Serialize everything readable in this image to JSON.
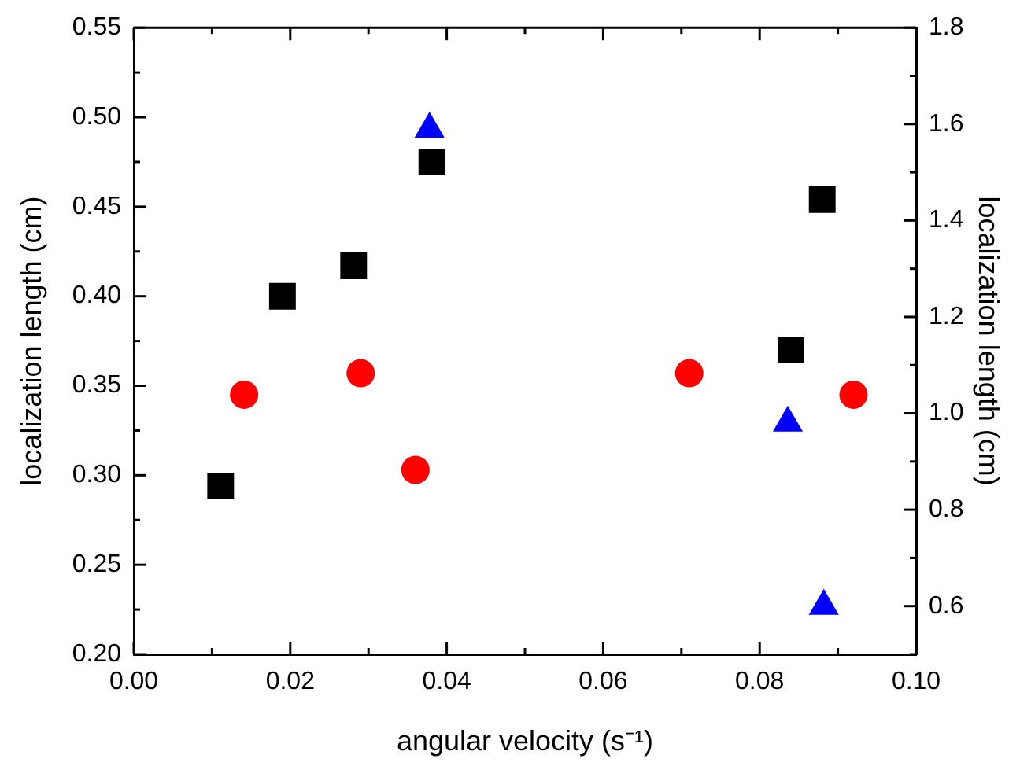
{
  "chart_data": {
    "type": "scatter",
    "xlabel": "angular velocity (s⁻¹)",
    "ylabel": "localization length (cm)",
    "y2label": "localization length (cm)",
    "xlim": [
      0,
      0.1
    ],
    "xticks": [
      {
        "value": 0,
        "label": "0.00"
      },
      {
        "value": 0.01,
        "label": null
      },
      {
        "value": 0.02,
        "label": "0.02"
      },
      {
        "value": 0.03,
        "label": null
      },
      {
        "value": 0.04,
        "label": "0.04"
      },
      {
        "value": 0.05,
        "label": null
      },
      {
        "value": 0.06,
        "label": "0.06"
      },
      {
        "value": 0.07,
        "label": null
      },
      {
        "value": 0.08,
        "label": "0.08"
      },
      {
        "value": 0.09,
        "label": null
      },
      {
        "value": 0.1,
        "label": "0.10"
      }
    ],
    "ylim": [
      0.2,
      0.55
    ],
    "yticks": [
      {
        "value": 0.2,
        "label": "0.20"
      },
      {
        "value": 0.225,
        "label": null
      },
      {
        "value": 0.25,
        "label": "0.25"
      },
      {
        "value": 0.275,
        "label": null
      },
      {
        "value": 0.3,
        "label": "0.30"
      },
      {
        "value": 0.325,
        "label": null
      },
      {
        "value": 0.35,
        "label": "0.35"
      },
      {
        "value": 0.375,
        "label": null
      },
      {
        "value": 0.4,
        "label": "0.40"
      },
      {
        "value": 0.425,
        "label": null
      },
      {
        "value": 0.45,
        "label": "0.45"
      },
      {
        "value": 0.475,
        "label": null
      },
      {
        "value": 0.5,
        "label": "0.50"
      },
      {
        "value": 0.525,
        "label": null
      },
      {
        "value": 0.55,
        "label": "0.55"
      }
    ],
    "y2lim": [
      0.5,
      1.8
    ],
    "y2ticks": [
      {
        "value": 0.5,
        "label": null
      },
      {
        "value": 0.6,
        "label": "0.6"
      },
      {
        "value": 0.7,
        "label": null
      },
      {
        "value": 0.8,
        "label": "0.8"
      },
      {
        "value": 0.9,
        "label": null
      },
      {
        "value": 1.0,
        "label": "1.0"
      },
      {
        "value": 1.1,
        "label": null
      },
      {
        "value": 1.2,
        "label": "1.2"
      },
      {
        "value": 1.3,
        "label": null
      },
      {
        "value": 1.4,
        "label": "1.4"
      },
      {
        "value": 1.5,
        "label": null
      },
      {
        "value": 1.6,
        "label": "1.6"
      },
      {
        "value": 1.7,
        "label": null
      },
      {
        "value": 1.8,
        "label": "1.8"
      }
    ],
    "grid": false,
    "legend": false,
    "series": [
      {
        "color": "#000000",
        "marker": "square",
        "x": [
          0.0111,
          0.019,
          0.0281,
          0.0381,
          0.084,
          0.088
        ],
        "values": [
          0.294,
          0.4,
          0.417,
          0.475,
          0.37,
          0.454
        ]
      },
      {
        "color": "#ff0000",
        "marker": "circle",
        "x": [
          0.0141,
          0.029,
          0.036,
          0.071,
          0.092
        ],
        "values": [
          0.345,
          0.357,
          0.303,
          0.357,
          0.345
        ]
      },
      {
        "color": "#0000ff",
        "marker": "triangle",
        "axis": "y2",
        "x": [
          0.0378,
          0.0836,
          0.0882
        ],
        "values": [
          1.59,
          0.98,
          0.6
        ]
      }
    ]
  }
}
